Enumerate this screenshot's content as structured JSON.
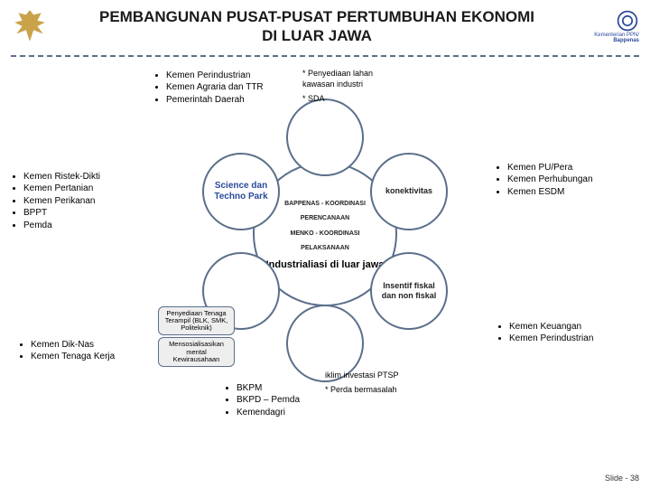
{
  "title_line1": "PEMBANGUNAN PUSAT-PUSAT PERTUMBUHAN EKONOMI",
  "title_line2": "DI LUAR JAWA",
  "logo_right_text1": "Kementerian PPN/",
  "logo_right_text2": "Bappenas",
  "footer": "Slide - 38",
  "circles": {
    "center_l1": "BAPPENAS - KOORDINASI",
    "center_l2": "PERENCANAAN",
    "center_l3": "MENKO - KOORDINASI",
    "center_l4": "PELAKSANAAN",
    "center_title": "Industrialiasi di luar jawa",
    "top": "",
    "left": "Science dan Techno Park",
    "right": "konektivitas",
    "bleft": "",
    "bright": "Insentif fiskal dan non fiskal",
    "bot": ""
  },
  "top_list": [
    "Kemen Perindustrian",
    "Kemen Agraria dan TTR",
    "Pemerintah Daerah"
  ],
  "top_annot1": "* Penyediaan lahan kawasan industri",
  "top_annot2": "* SDA",
  "left_list": [
    "Kemen Ristek-Dikti",
    "Kemen Pertanian",
    "Kemen Perikanan",
    "BPPT",
    "Pemda"
  ],
  "right_list": [
    "Kemen PU/Pera",
    "Kemen Perhubungan",
    "Kemen ESDM"
  ],
  "bleft_list": [
    "Kemen Dik-Nas",
    "Kemen Tenaga Kerja"
  ],
  "bleft_annot1": "Penyediaan Tenaga Terampil (BLK, SMK, Politeknik)",
  "bleft_annot2": "Mensosialisasikan mental Kewirausahaan",
  "bright_list": [
    "Kemen Keuangan",
    "Kemen Perindustrian"
  ],
  "bot_list": [
    "BKPM",
    "BKPD – Pemda",
    "Kemendagri"
  ],
  "bot_annot1": "iklim investasi PTSP",
  "bot_annot2": "* Perda bermasalah",
  "colors": {
    "border": "#5a6f8a",
    "accent": "#2a4a9a",
    "gold": "#c9a24a"
  }
}
